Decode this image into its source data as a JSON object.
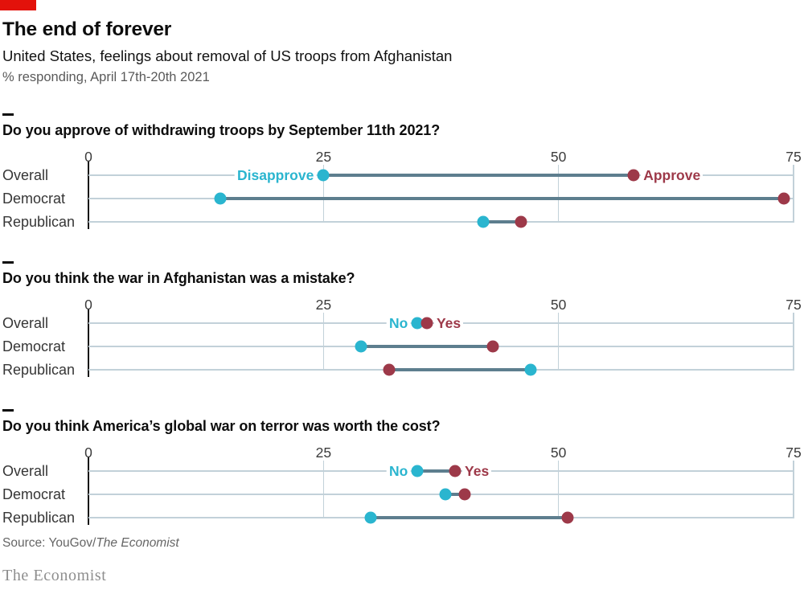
{
  "header": {
    "title": "The end of forever",
    "subtitle": "United States, feelings about removal of US troops from Afghanistan",
    "dateline": "% responding, April 17th-20th 2021"
  },
  "colors": {
    "brand_red": "#e3120b",
    "cyan": "#2ab5cf",
    "claret": "#9d3949",
    "connector": "#5d7e8e",
    "gridline": "#c2d1d9",
    "spine": "#161616"
  },
  "chart_data": [
    {
      "type": "dumbbell",
      "title": "Do you approve of withdrawing troops by September 11th 2021?",
      "xlabel": "",
      "xlim": [
        0,
        75
      ],
      "ticks": [
        0,
        25,
        50,
        75
      ],
      "grid": "vertical-and-row-lines",
      "categories": [
        "Overall",
        "Democrat",
        "Republican"
      ],
      "series": [
        {
          "name": "Disapprove",
          "color": "cyan",
          "values": [
            25,
            14,
            42
          ]
        },
        {
          "name": "Approve",
          "color": "claret",
          "values": [
            58,
            74,
            46
          ]
        }
      ],
      "series_label_row": 0,
      "legend_position": "inline-first-row"
    },
    {
      "type": "dumbbell",
      "title": "Do you think the war in Afghanistan was a mistake?",
      "xlabel": "",
      "xlim": [
        0,
        75
      ],
      "ticks": [
        0,
        25,
        50,
        75
      ],
      "grid": "vertical-and-row-lines",
      "categories": [
        "Overall",
        "Democrat",
        "Republican"
      ],
      "series": [
        {
          "name": "No",
          "color": "cyan",
          "values": [
            35,
            29,
            47
          ]
        },
        {
          "name": "Yes",
          "color": "claret",
          "values": [
            36,
            43,
            32
          ]
        }
      ],
      "series_label_row": 0,
      "legend_position": "inline-first-row"
    },
    {
      "type": "dumbbell",
      "title": "Do you think America’s global war on terror was worth the cost?",
      "xlabel": "",
      "xlim": [
        0,
        75
      ],
      "ticks": [
        0,
        25,
        50,
        75
      ],
      "grid": "vertical-and-row-lines",
      "categories": [
        "Overall",
        "Democrat",
        "Republican"
      ],
      "series": [
        {
          "name": "No",
          "color": "cyan",
          "values": [
            35,
            38,
            30
          ]
        },
        {
          "name": "Yes",
          "color": "claret",
          "values": [
            39,
            40,
            51
          ]
        }
      ],
      "series_label_row": 0,
      "legend_position": "inline-first-row"
    }
  ],
  "footer": {
    "source_prefix": "Source: YouGov/",
    "source_publication": "The Economist",
    "logo": "The Economist"
  }
}
